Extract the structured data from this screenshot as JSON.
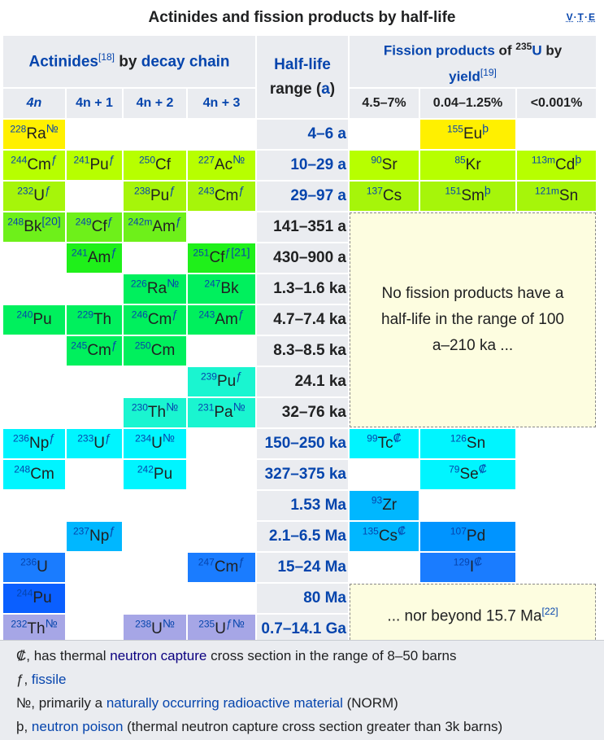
{
  "title": "Actinides and fission products by half-life",
  "vte": [
    "V",
    "T",
    "E"
  ],
  "header": {
    "actinides": "Actinides",
    "actinides_ref": "[18]",
    "by": " by ",
    "decay_chain": "decay chain",
    "halflife_1": "Half-life",
    "halflife_2": "range (",
    "halflife_a": "a",
    "halflife_3": ")",
    "fp_link": "Fission products",
    "fp_of": " of ",
    "fp_iso": "235",
    "fp_u": "U",
    "fp_by": " by",
    "fp_yield": "yield",
    "fp_ref": "[19]"
  },
  "subheaders": {
    "c1": "4n",
    "c2": "4n + 1",
    "c3": "4n + 2",
    "c4": "4n + 3",
    "y1": "4.5–7%",
    "y2": "0.04–1.25%",
    "y3": "<0.001%"
  },
  "rows": [
    {
      "hl": "4–6 a",
      "cells": [
        {
          "m": "228",
          "s": "Ra",
          "x": "№"
        },
        null,
        null,
        null
      ],
      "fp": [
        null,
        {
          "m": "155",
          "s": "Eu",
          "x": "þ"
        },
        null
      ]
    },
    {
      "hl": "10–29 a",
      "cells": [
        {
          "m": "244",
          "s": "Cm",
          "x": "ƒ"
        },
        {
          "m": "241",
          "s": "Pu",
          "x": "ƒ"
        },
        {
          "m": "250",
          "s": "Cf",
          "x": ""
        },
        {
          "m": "227",
          "s": "Ac",
          "x": "№"
        }
      ],
      "fp": [
        {
          "m": "90",
          "s": "Sr",
          "x": ""
        },
        {
          "m": "85",
          "s": "Kr",
          "x": ""
        },
        {
          "m": "113m",
          "s": "Cd",
          "x": "þ"
        }
      ]
    },
    {
      "hl": "29–97 a",
      "cells": [
        {
          "m": "232",
          "s": "U",
          "x": "ƒ"
        },
        null,
        {
          "m": "238",
          "s": "Pu",
          "x": "ƒ"
        },
        {
          "m": "243",
          "s": "Cm",
          "x": "ƒ"
        }
      ],
      "fp": [
        {
          "m": "137",
          "s": "Cs",
          "x": ""
        },
        {
          "m": "151",
          "s": "Sm",
          "x": "þ"
        },
        {
          "m": "121m",
          "s": "Sn",
          "x": ""
        }
      ]
    },
    {
      "hl": "141–351 a",
      "cells": [
        {
          "m": "248",
          "s": "Bk",
          "x": "[20]"
        },
        {
          "m": "249",
          "s": "Cf",
          "x": "ƒ"
        },
        {
          "m": "242m",
          "s": "Am",
          "x": "ƒ"
        },
        null
      ]
    },
    {
      "hl": "430–900 a",
      "cells": [
        null,
        {
          "m": "241",
          "s": "Am",
          "x": "ƒ"
        },
        null,
        {
          "m": "251",
          "s": "Cf",
          "x": "ƒ[21]"
        }
      ]
    },
    {
      "hl": "1.3–1.6 ka",
      "cells": [
        null,
        null,
        {
          "m": "226",
          "s": "Ra",
          "x": "№"
        },
        {
          "m": "247",
          "s": "Bk",
          "x": ""
        }
      ]
    },
    {
      "hl": "4.7–7.4 ka",
      "cells": [
        {
          "m": "240",
          "s": "Pu",
          "x": ""
        },
        {
          "m": "229",
          "s": "Th",
          "x": ""
        },
        {
          "m": "246",
          "s": "Cm",
          "x": "ƒ"
        },
        {
          "m": "243",
          "s": "Am",
          "x": "ƒ"
        }
      ]
    },
    {
      "hl": "8.3–8.5 ka",
      "cells": [
        null,
        {
          "m": "245",
          "s": "Cm",
          "x": "ƒ"
        },
        {
          "m": "250",
          "s": "Cm",
          "x": ""
        },
        null
      ]
    },
    {
      "hl": "24.1 ka",
      "cells": [
        null,
        null,
        null,
        {
          "m": "239",
          "s": "Pu",
          "x": "ƒ"
        }
      ]
    },
    {
      "hl": "32–76 ka",
      "cells": [
        null,
        null,
        {
          "m": "230",
          "s": "Th",
          "x": "№"
        },
        {
          "m": "231",
          "s": "Pa",
          "x": "№"
        }
      ]
    },
    {
      "hl": "150–250 ka",
      "cells": [
        {
          "m": "236",
          "s": "Np",
          "x": "ƒ"
        },
        {
          "m": "233",
          "s": "U",
          "x": "ƒ"
        },
        {
          "m": "234",
          "s": "U",
          "x": "№"
        },
        null
      ],
      "fp": [
        {
          "m": "99",
          "s": "Tc",
          "x": "₡"
        },
        {
          "m": "126",
          "s": "Sn",
          "x": ""
        },
        null
      ]
    },
    {
      "hl": "327–375 ka",
      "cells": [
        {
          "m": "248",
          "s": "Cm",
          "x": ""
        },
        null,
        {
          "m": "242",
          "s": "Pu",
          "x": ""
        },
        null
      ],
      "fp": [
        null,
        {
          "m": "79",
          "s": "Se",
          "x": "₡"
        },
        null
      ]
    },
    {
      "hl": "1.53 Ma",
      "cells": [
        null,
        null,
        null,
        null
      ],
      "fp": [
        {
          "m": "93",
          "s": "Zr",
          "x": ""
        },
        null,
        null
      ]
    },
    {
      "hl": "2.1–6.5 Ma",
      "cells": [
        null,
        {
          "m": "237",
          "s": "Np",
          "x": "ƒ"
        },
        null,
        null
      ],
      "fp": [
        {
          "m": "135",
          "s": "Cs",
          "x": "₡"
        },
        {
          "m": "107",
          "s": "Pd",
          "x": ""
        },
        null
      ]
    },
    {
      "hl": "15–24 Ma",
      "cells": [
        {
          "m": "236",
          "s": "U",
          "x": ""
        },
        null,
        null,
        {
          "m": "247",
          "s": "Cm",
          "x": "ƒ"
        }
      ],
      "fp": [
        null,
        {
          "m": "129",
          "s": "I",
          "x": "₡"
        },
        null
      ]
    },
    {
      "hl": "80 Ma",
      "cells": [
        {
          "m": "244",
          "s": "Pu",
          "x": ""
        },
        null,
        null,
        null
      ]
    },
    {
      "hl": "0.7–14.1 Ga",
      "cells": [
        {
          "m": "232",
          "s": "Th",
          "x": "№"
        },
        null,
        {
          "m": "238",
          "s": "U",
          "x": "№"
        },
        {
          "m": "235",
          "s": "U",
          "x": "ƒ№"
        }
      ]
    }
  ],
  "notes": {
    "gap1": "No fission products have a half-life in the range of 100 a–210 ka ...",
    "gap2": "... nor beyond 15.7 Ma",
    "gap2_ref": "[22]"
  },
  "legend": [
    {
      "sym": "₡,",
      "pre": " has thermal ",
      "link": "neutron capture",
      "post": " cross section in the range of 8–50 barns"
    },
    {
      "sym": "ƒ,",
      "pre": " ",
      "link": "fissile",
      "post": ""
    },
    {
      "sym": "№,",
      "pre": " primarily a ",
      "link": "naturally occurring radioactive material",
      "post": " (NORM)"
    },
    {
      "sym": "þ,",
      "pre": " ",
      "link": "neutron poison",
      "post": " (thermal neutron capture cross section greater than 3k barns)"
    }
  ],
  "colors": {
    "header_bg": "#eaecf0",
    "link": "#0645ad",
    "note_bg": "#fdfde0"
  }
}
